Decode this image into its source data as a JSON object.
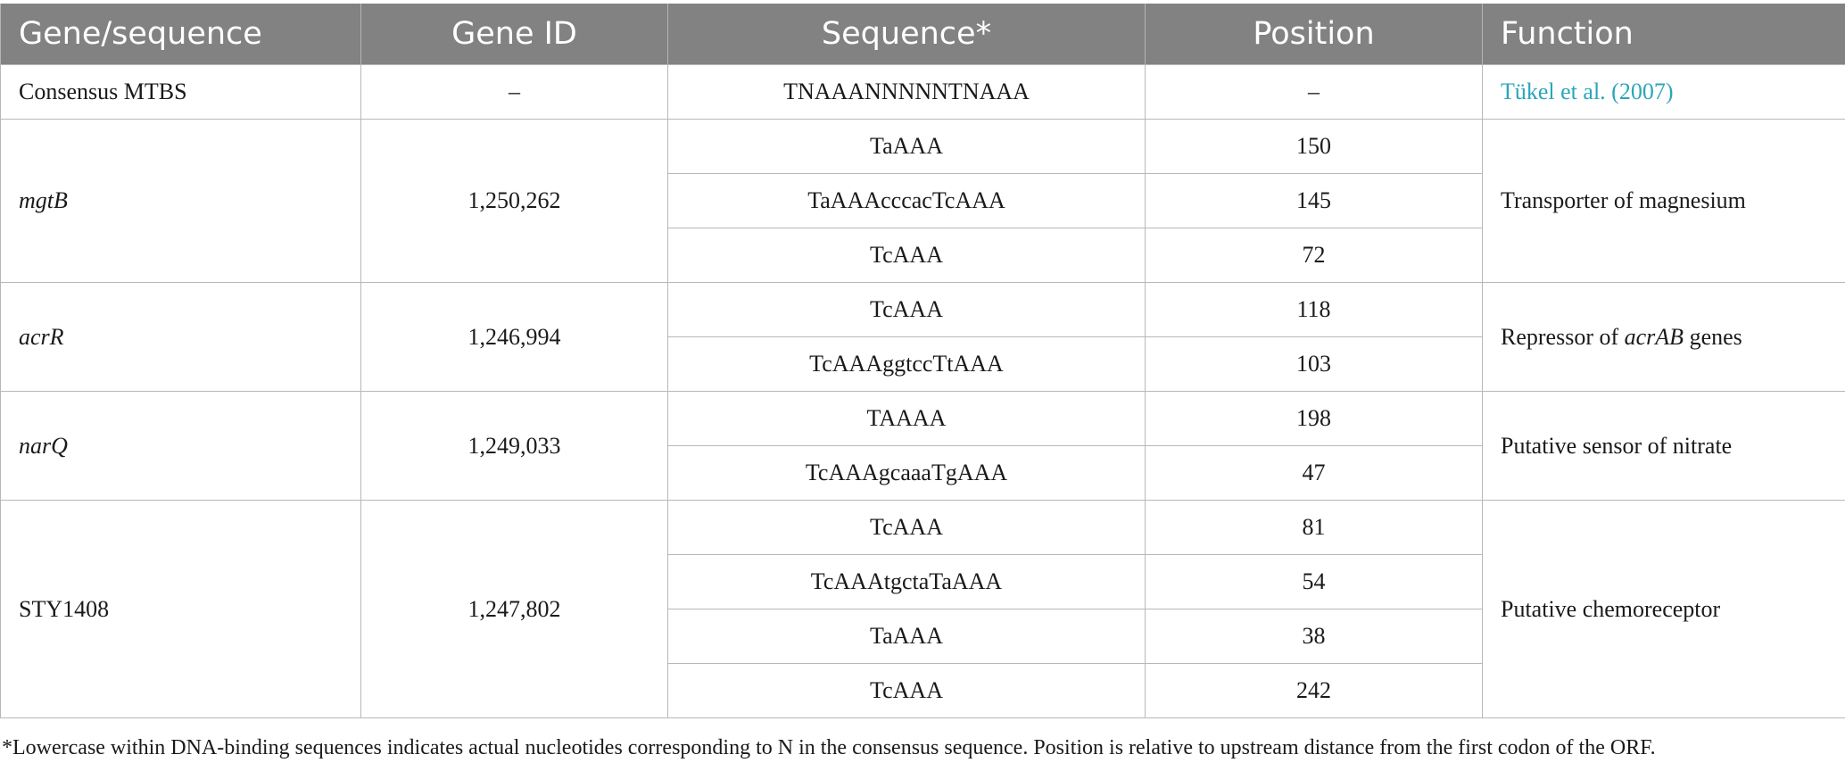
{
  "table": {
    "headers": [
      "Gene/sequence",
      "Gene ID",
      "Sequence*",
      "Position",
      "Function"
    ],
    "consensus": {
      "gene": "Consensus MTBS",
      "gene_id": "–",
      "sequence": "TNAAANNNNNTNAAA",
      "position": "–",
      "function_link": "Tükel et al. (2007)"
    },
    "groups": [
      {
        "gene": "mgtB",
        "gene_id": "1,250,262",
        "function": "Transporter of magnesium",
        "rows": [
          {
            "sequence": "TaAAA",
            "position": "150"
          },
          {
            "sequence": "TaAAAcccacTcAAA",
            "position": "145"
          },
          {
            "sequence": "TcAAA",
            "position": "72"
          }
        ]
      },
      {
        "gene": "acrR",
        "gene_id": "1,246,994",
        "function_pre": "Repressor of ",
        "function_italic": "acrAB",
        "function_post": " genes",
        "rows": [
          {
            "sequence": "TcAAA",
            "position": "118"
          },
          {
            "sequence": "TcAAAggtccTtAAA",
            "position": "103"
          }
        ]
      },
      {
        "gene": "narQ",
        "gene_id": "1,249,033",
        "function": "Putative sensor of nitrate",
        "rows": [
          {
            "sequence": "TAAAA",
            "position": "198"
          },
          {
            "sequence": "TcAAAgcaaaTgAAA",
            "position": "47"
          }
        ]
      },
      {
        "gene": "STY1408",
        "gene_id": "1,247,802",
        "function": "Putative chemoreceptor",
        "rows": [
          {
            "sequence": "TcAAA",
            "position": "81"
          },
          {
            "sequence": "TcAAAtgctaTaAAA",
            "position": "54"
          },
          {
            "sequence": "TaAAA",
            "position": "38"
          },
          {
            "sequence": "TcAAA",
            "position": "242"
          }
        ]
      }
    ]
  },
  "footnote": "*Lowercase within DNA-binding sequences indicates actual nucleotides corresponding to N in the consensus sequence. Position is relative to upstream distance from the first codon of the ORF."
}
